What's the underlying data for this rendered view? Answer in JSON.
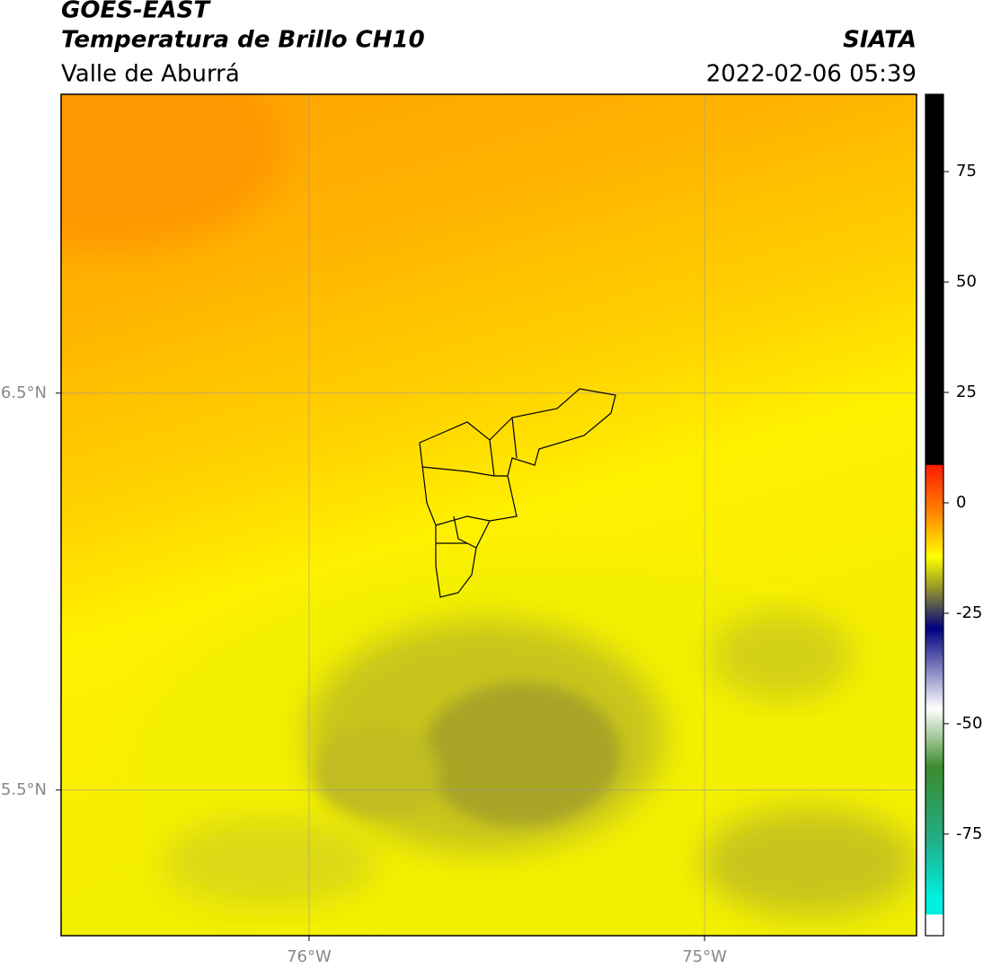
{
  "header": {
    "title": "GOES-EAST",
    "subtitle": "Temperatura de Brillo CH10",
    "region": "Valle de Aburrá",
    "source": "SIATA",
    "datetime": "2022-02-06 05:39"
  },
  "map": {
    "xlim": [
      -76.627,
      -74.464
    ],
    "ylim": [
      5.133,
      7.253
    ],
    "xticks": [
      {
        "value": -76,
        "label": "76°W"
      },
      {
        "value": -75,
        "label": "75°W"
      }
    ],
    "yticks": [
      {
        "value": 6.5,
        "label": "6.5°N"
      },
      {
        "value": 5.5,
        "label": "5.5°N"
      }
    ]
  },
  "colorbar": {
    "lim": [
      -98,
      92.5
    ],
    "ticks": [
      75,
      50,
      25,
      0,
      -25,
      -50,
      -75
    ]
  }
}
